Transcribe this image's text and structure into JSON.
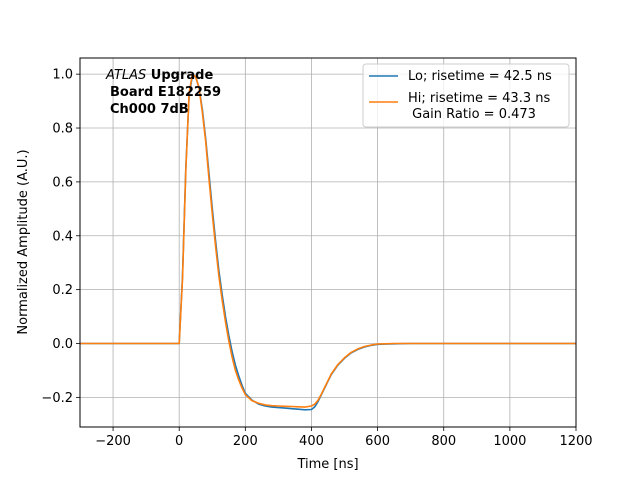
{
  "chart_data": {
    "type": "line",
    "xlabel": "Time [ns]",
    "ylabel": "Normalized Amplitude (A.U.)",
    "xlim": [
      -300,
      1200
    ],
    "ylim": [
      -0.31,
      1.06
    ],
    "x_ticks": [
      -200,
      0,
      200,
      400,
      600,
      800,
      1000,
      1200
    ],
    "y_ticks": [
      -0.2,
      0.0,
      0.2,
      0.4,
      0.6,
      0.8,
      1.0
    ],
    "x_tick_labels": [
      "−200",
      "0",
      "200",
      "400",
      "600",
      "800",
      "1000",
      "1200"
    ],
    "y_tick_labels": [
      "−0.2",
      "0.0",
      "0.2",
      "0.4",
      "0.6",
      "0.8",
      "1.0"
    ],
    "grid": true,
    "legend_position": "top-right",
    "annotation": {
      "line1_italic": "ATLAS",
      "line1_bold": " Upgrade",
      "line2": "Board E182259",
      "line3": "Ch000 7dB"
    },
    "series": [
      {
        "name": "Lo; risetime = 42.5 ns",
        "color": "#1f77b4",
        "x": [
          -300,
          -100,
          0,
          10,
          20,
          30,
          40,
          50,
          60,
          70,
          80,
          90,
          100,
          110,
          120,
          130,
          140,
          150,
          160,
          170,
          180,
          190,
          200,
          220,
          240,
          260,
          280,
          300,
          320,
          340,
          360,
          380,
          400,
          410,
          420,
          430,
          440,
          450,
          460,
          480,
          500,
          520,
          540,
          560,
          580,
          600,
          650,
          700,
          800,
          900,
          1000,
          1100,
          1200
        ],
        "y": [
          0.0,
          0.0,
          0.0,
          0.25,
          0.65,
          0.92,
          0.995,
          0.99,
          0.95,
          0.87,
          0.76,
          0.63,
          0.5,
          0.38,
          0.27,
          0.18,
          0.1,
          0.03,
          -0.03,
          -0.08,
          -0.12,
          -0.155,
          -0.185,
          -0.21,
          -0.225,
          -0.232,
          -0.236,
          -0.238,
          -0.24,
          -0.242,
          -0.244,
          -0.246,
          -0.245,
          -0.235,
          -0.215,
          -0.19,
          -0.165,
          -0.14,
          -0.115,
          -0.08,
          -0.055,
          -0.035,
          -0.022,
          -0.013,
          -0.007,
          -0.003,
          -0.001,
          0.0,
          0.0,
          0.0,
          0.0,
          0.0,
          0.0
        ]
      },
      {
        "name": "Hi; risetime = 43.3 ns\n Gain Ratio = 0.473",
        "color": "#ff7f0e",
        "x": [
          -300,
          -100,
          0,
          10,
          20,
          30,
          40,
          50,
          60,
          70,
          80,
          90,
          100,
          110,
          120,
          130,
          140,
          150,
          160,
          170,
          180,
          190,
          200,
          220,
          240,
          260,
          280,
          300,
          320,
          340,
          360,
          380,
          400,
          410,
          420,
          430,
          440,
          450,
          460,
          480,
          500,
          520,
          540,
          560,
          580,
          600,
          650,
          700,
          800,
          900,
          1000,
          1100,
          1200
        ],
        "y": [
          0.0,
          0.0,
          0.0,
          0.24,
          0.64,
          0.93,
          1.0,
          0.99,
          0.95,
          0.86,
          0.75,
          0.61,
          0.48,
          0.36,
          0.25,
          0.16,
          0.08,
          0.01,
          -0.05,
          -0.1,
          -0.135,
          -0.165,
          -0.19,
          -0.212,
          -0.222,
          -0.228,
          -0.231,
          -0.232,
          -0.233,
          -0.234,
          -0.235,
          -0.236,
          -0.232,
          -0.225,
          -0.21,
          -0.188,
          -0.163,
          -0.138,
          -0.113,
          -0.078,
          -0.053,
          -0.033,
          -0.02,
          -0.011,
          -0.006,
          -0.002,
          0.0,
          0.0,
          0.0,
          0.0,
          0.0,
          0.0,
          0.0
        ]
      }
    ]
  }
}
